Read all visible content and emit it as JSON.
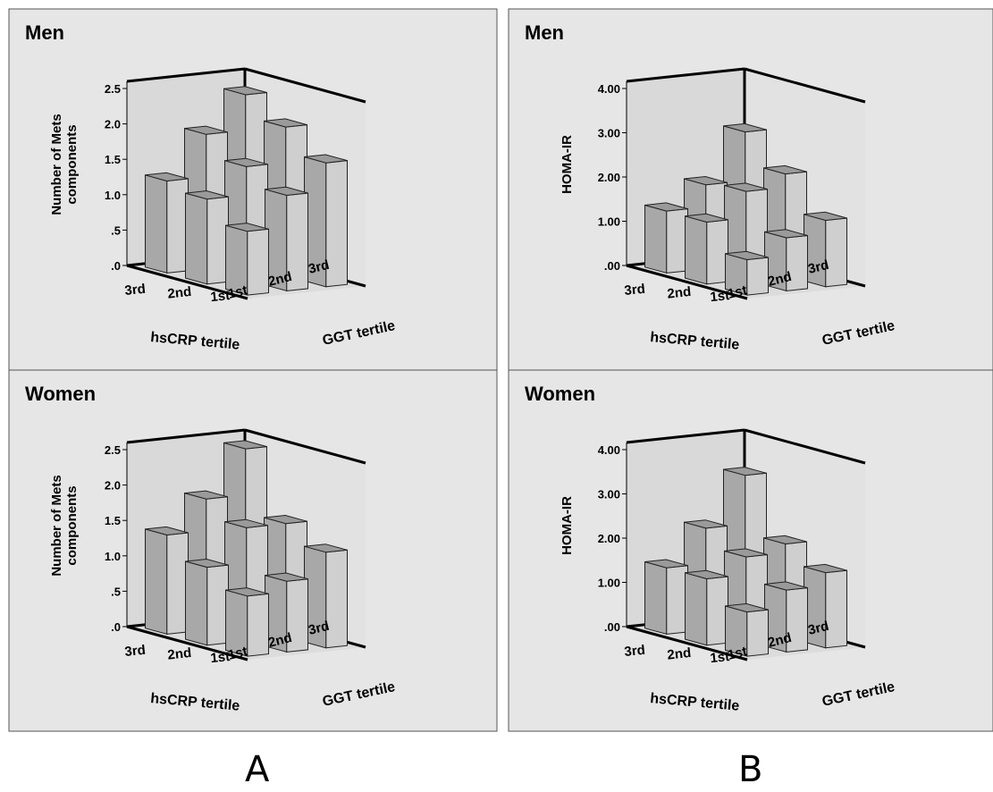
{
  "panel_labels": [
    "A",
    "B"
  ],
  "colors": {
    "panel_bg": "#e6e6e6",
    "wall": "#d9d9d9",
    "bar_front": "#cfcfcf",
    "bar_top": "#9a9a9a",
    "bar_side": "#a8a8a8",
    "outline": "#000000"
  },
  "chart_data": [
    {
      "type": "bar3d",
      "title": "Men",
      "ylabel": "Number of Mets components",
      "xlabel_left": "hsCRP tertile",
      "xlabel_right": "GGT tertile",
      "yticks": [
        ".0",
        ".5",
        "1.0",
        "1.5",
        "2.0",
        "2.5"
      ],
      "ylim": [
        0,
        2.5
      ],
      "hsCRP_tiers": [
        "3rd",
        "2nd",
        "1st"
      ],
      "GGT_tiers": [
        "1st",
        "2nd",
        "3rd"
      ],
      "values": [
        [
          1.3,
          1.9,
          2.4
        ],
        [
          1.2,
          1.6,
          2.1
        ],
        [
          0.9,
          1.35,
          1.75
        ]
      ]
    },
    {
      "type": "bar3d",
      "title": "Men",
      "ylabel": "HOMA-IR",
      "xlabel_left": "hsCRP tertile",
      "xlabel_right": "GGT tertile",
      "yticks": [
        ".00",
        "1.00",
        "2.00",
        "3.00",
        "4.00"
      ],
      "ylim": [
        0,
        4.0
      ],
      "hsCRP_tiers": [
        "3rd",
        "2nd",
        "1st"
      ],
      "GGT_tiers": [
        "1st",
        "2nd",
        "3rd"
      ],
      "values": [
        [
          1.4,
          1.9,
          3.0
        ],
        [
          1.4,
          2.0,
          2.3
        ],
        [
          0.8,
          1.2,
          1.5
        ]
      ]
    },
    {
      "type": "bar3d",
      "title": "Women",
      "ylabel": "Number of Mets components",
      "xlabel_left": "hsCRP tertile",
      "xlabel_right": "GGT tertile",
      "yticks": [
        ".0",
        ".5",
        "1.0",
        "1.5",
        "2.0",
        "2.5"
      ],
      "ylim": [
        0,
        2.5
      ],
      "hsCRP_tiers": [
        "3rd",
        "2nd",
        "1st"
      ],
      "GGT_tiers": [
        "1st",
        "2nd",
        "3rd"
      ],
      "values": [
        [
          1.4,
          1.85,
          2.5
        ],
        [
          1.1,
          1.6,
          1.6
        ],
        [
          0.85,
          1.0,
          1.35
        ]
      ]
    },
    {
      "type": "bar3d",
      "title": "Women",
      "ylabel": "HOMA-IR",
      "xlabel_left": "hsCRP tertile",
      "xlabel_right": "GGT tertile",
      "yticks": [
        ".00",
        "1.00",
        "2.00",
        "3.00",
        "4.00"
      ],
      "ylim": [
        0,
        4.0
      ],
      "hsCRP_tiers": [
        "3rd",
        "2nd",
        "1st"
      ],
      "GGT_tiers": [
        "1st",
        "2nd",
        "3rd"
      ],
      "values": [
        [
          1.5,
          2.3,
          3.4
        ],
        [
          1.5,
          1.9,
          2.1
        ],
        [
          1.0,
          1.4,
          1.7
        ]
      ]
    }
  ]
}
